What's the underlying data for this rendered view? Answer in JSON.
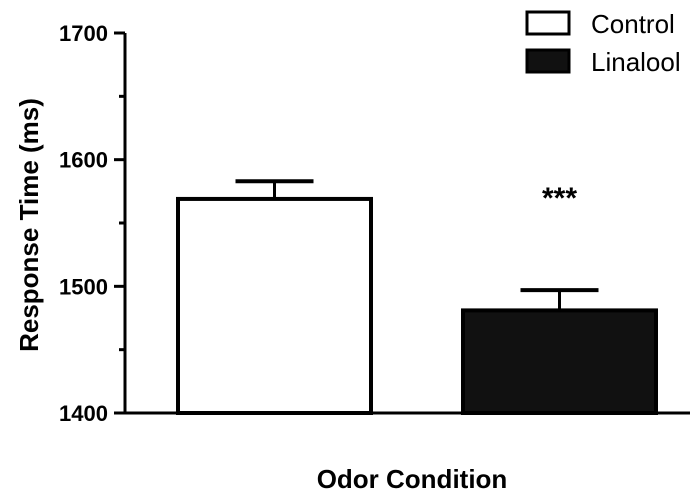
{
  "chart_data": {
    "type": "bar",
    "categories": [
      "Control",
      "Linalool"
    ],
    "values": [
      1569,
      1481
    ],
    "errors": [
      14,
      16
    ],
    "ylabel": "Response Time (ms)",
    "xlabel": "Odor Condition",
    "ylim": [
      1400,
      1700
    ],
    "yticks": [
      1400,
      1500,
      1600,
      1700
    ],
    "grid": false,
    "legend_position": "top-right",
    "annotations": [
      {
        "category": "Linalool",
        "text": "***"
      }
    ],
    "colors": {
      "Control": "#ffffff",
      "Linalool": "#111111",
      "stroke": "#000000"
    }
  }
}
